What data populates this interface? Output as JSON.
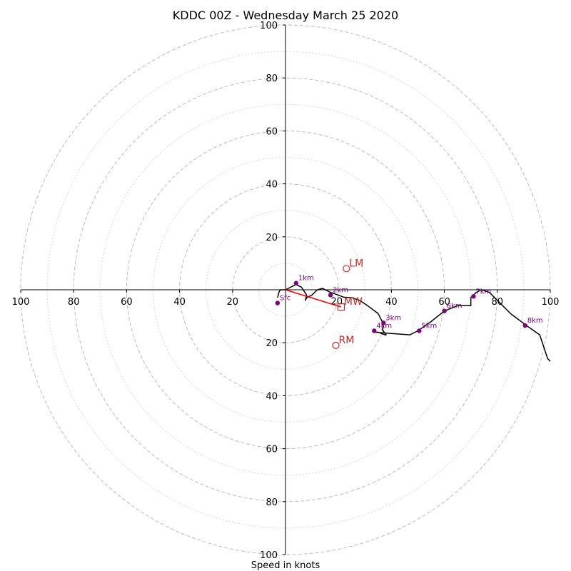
{
  "chart_data": {
    "type": "hodograph",
    "title": "KDDC 00Z - Wednesday March 25 2020",
    "xlabel": "Speed in knots",
    "ring_range": [
      0,
      100
    ],
    "ring_ticks": [
      20,
      40,
      60,
      80,
      100
    ],
    "ring_tick_labels": [
      "20",
      "40",
      "60",
      "80",
      "100"
    ],
    "x_tick_labels": [
      "100",
      "80",
      "60",
      "40",
      "20",
      "40",
      "60",
      "80",
      "100"
    ],
    "minor_rings": [
      10,
      30,
      50,
      70,
      90
    ],
    "grid": true,
    "hodograph_series": {
      "u": [
        -3,
        -2.5,
        -2,
        0,
        4,
        6,
        8,
        7.5,
        7.5,
        7.5,
        8,
        10,
        12,
        14,
        17,
        20,
        22,
        25,
        28,
        31,
        35,
        36.5,
        37,
        36.5,
        38,
        37.5,
        35,
        33.5,
        40,
        47,
        50,
        55,
        60,
        65,
        70,
        70,
        72,
        74,
        77,
        80,
        85,
        91,
        96,
        99,
        100,
        100
      ],
      "v": [
        -3,
        -1,
        0,
        0,
        2,
        1,
        -2,
        -4,
        -4,
        -4,
        -3,
        -2,
        0,
        0.5,
        -1,
        -2,
        -2.8,
        -3,
        -4,
        -6,
        -9,
        -12,
        -14,
        -15,
        -17,
        -17,
        -16,
        -16,
        -16.5,
        -17,
        -15.5,
        -12,
        -8,
        -6,
        -6,
        -3,
        -1,
        0,
        -1,
        -4,
        -9,
        -13.5,
        -17,
        -26,
        -27,
        -27
      ]
    },
    "height_markers": [
      {
        "label": "Sfc",
        "u": -3,
        "v": -5
      },
      {
        "label": "1km",
        "u": 4,
        "v": 2.5
      },
      {
        "label": "2km",
        "u": 17,
        "v": -2
      },
      {
        "label": "3km",
        "u": 37,
        "v": -12.5
      },
      {
        "label": "4km",
        "u": 33.5,
        "v": -15.5
      },
      {
        "label": "5km",
        "u": 50.5,
        "v": -15.5
      },
      {
        "label": "6km",
        "u": 60,
        "v": -8
      },
      {
        "label": "7km",
        "u": 71,
        "v": -2.5
      },
      {
        "label": "8km",
        "u": 90.5,
        "v": -13.5
      }
    ],
    "motion_markers": [
      {
        "label": "LM",
        "u": 23,
        "v": 8,
        "symbol": "circle"
      },
      {
        "label": "MW",
        "u": 21,
        "v": -6.5,
        "symbol": "square"
      },
      {
        "label": "RM",
        "u": 19,
        "v": -21,
        "symbol": "circle"
      }
    ],
    "shear_vector": {
      "from": [
        0,
        0
      ],
      "to": [
        21,
        -6.5
      ]
    },
    "colors": {
      "hodograph": "#000000",
      "markers": "#800080",
      "motion": "#c62828",
      "shear": "#ff0000",
      "grid": "#bbbbbb"
    }
  }
}
